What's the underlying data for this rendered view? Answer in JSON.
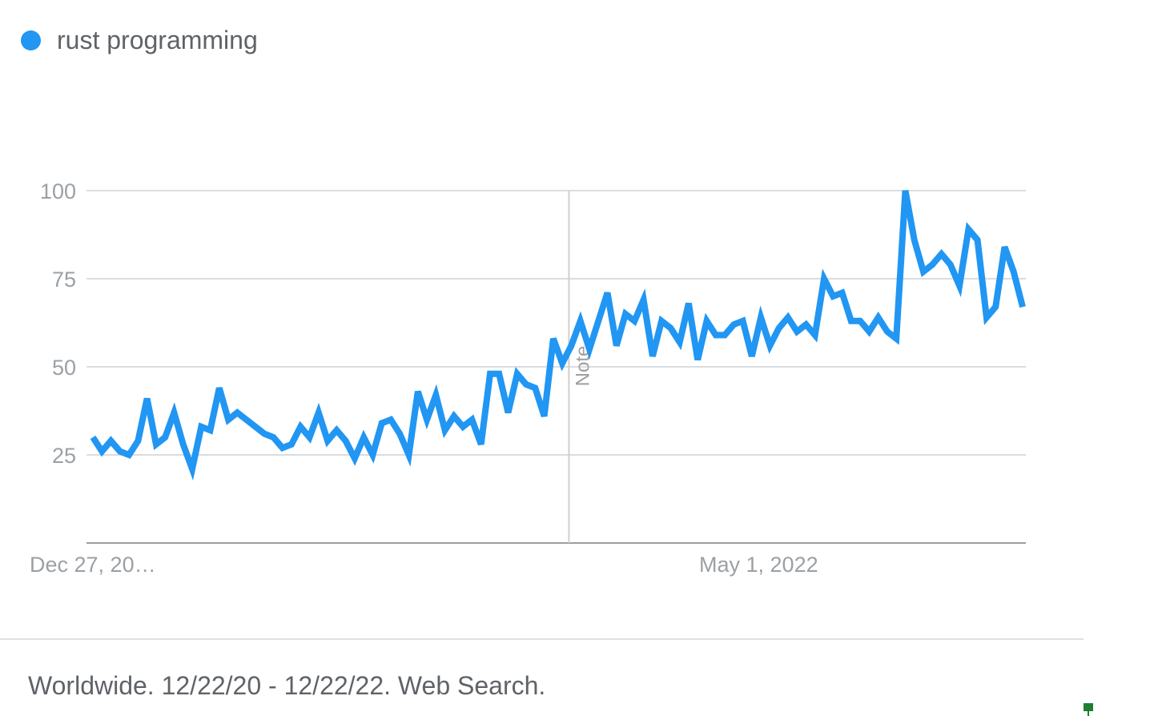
{
  "colors": {
    "series": "#2196f3",
    "grid": "#dadce0",
    "axis": "#9e9e9e",
    "tick_text": "#9aa0a6",
    "note_line": "#cfcfcf",
    "note_text": "#9e9e9e",
    "footer_text": "#5f6368"
  },
  "legend": {
    "label": "rust programming"
  },
  "footer": {
    "text": "Worldwide. 12/22/20 - 12/22/22. Web Search."
  },
  "chart_data": {
    "type": "line",
    "title": "",
    "xlabel": "",
    "ylabel": "",
    "ylim": [
      0,
      100
    ],
    "yticks": [
      25,
      50,
      75,
      100
    ],
    "grid": true,
    "legend_position": "top-left",
    "x_tick_labels": [
      {
        "label": "Dec 27, 20…",
        "index": 0
      },
      {
        "label": "May 1, 2022",
        "index": 70
      }
    ],
    "annotations": [
      {
        "label": "Note",
        "index": 53
      }
    ],
    "series": [
      {
        "name": "rust programming",
        "values": [
          30,
          26,
          29,
          26,
          25,
          29,
          41,
          28,
          30,
          37,
          28,
          21,
          33,
          32,
          44,
          35,
          37,
          35,
          33,
          31,
          30,
          27,
          28,
          33,
          30,
          37,
          29,
          32,
          29,
          24,
          30,
          25,
          34,
          35,
          31,
          25,
          43,
          35,
          42,
          32,
          36,
          33,
          35,
          28,
          48,
          48,
          37,
          48,
          45,
          44,
          36,
          58,
          51,
          56,
          63,
          55,
          63,
          71,
          56,
          65,
          63,
          69,
          53,
          63,
          61,
          57,
          68,
          52,
          63,
          59,
          59,
          62,
          63,
          53,
          64,
          56,
          61,
          64,
          60,
          62,
          59,
          75,
          70,
          71,
          63,
          63,
          60,
          64,
          60,
          58,
          100,
          86,
          77,
          79,
          82,
          79,
          73,
          89,
          86,
          64,
          67,
          84,
          77,
          67
        ]
      }
    ]
  }
}
